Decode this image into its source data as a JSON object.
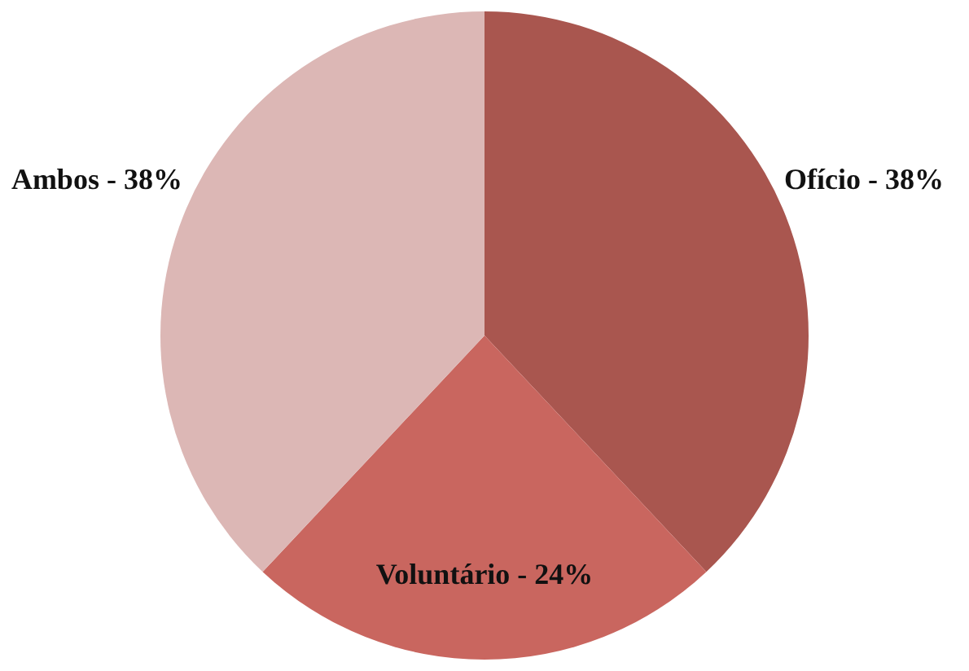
{
  "chart_data": {
    "type": "pie",
    "categories": [
      "Ofício",
      "Voluntário",
      "Ambos"
    ],
    "values": [
      38,
      24,
      38
    ],
    "colors": [
      "#a9564f",
      "#c9665f",
      "#dcb7b5"
    ],
    "value_labels": [
      "38%",
      "24%",
      "38%"
    ]
  }
}
